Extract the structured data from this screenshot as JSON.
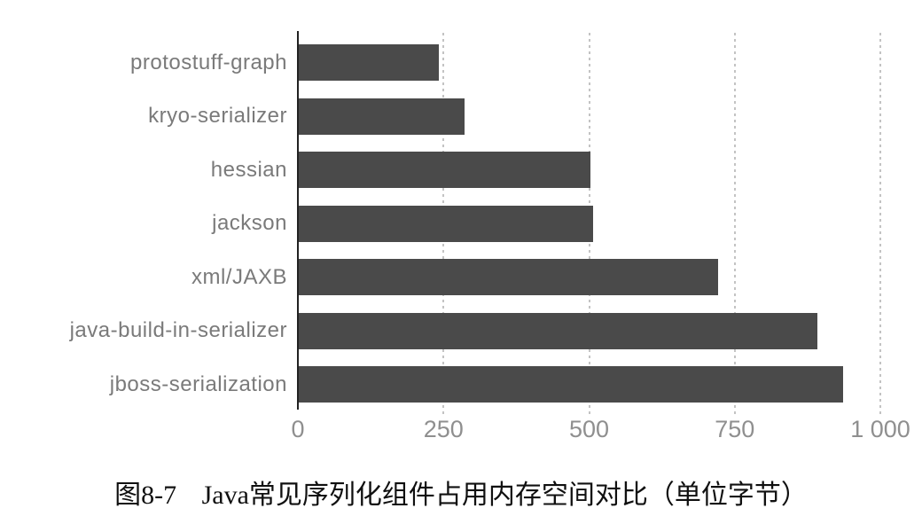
{
  "figure": {
    "caption": {
      "label": "图8-7",
      "text": "Java常见序列化组件占用内存空间对比（单位字节）"
    }
  },
  "chart_data": {
    "type": "bar",
    "orientation": "horizontal",
    "title": "",
    "xlabel": "",
    "ylabel": "",
    "unit": "字节 (bytes)",
    "categories": [
      "protostuff-graph",
      "kryo-serializer",
      "hessian",
      "jackson",
      "xml/JAXB",
      "java-build-in-serializer",
      "jboss-serialization"
    ],
    "values": [
      240,
      285,
      500,
      505,
      720,
      890,
      935
    ],
    "xlim": [
      0,
      1000
    ],
    "x_ticks": [
      {
        "value": 0,
        "label": "0"
      },
      {
        "value": 250,
        "label": "250"
      },
      {
        "value": 500,
        "label": "500"
      },
      {
        "value": 750,
        "label": "750"
      },
      {
        "value": 1000,
        "label": "1 000"
      }
    ],
    "grid": "vertical-dotted-gridlines",
    "legend": "none",
    "colors": {
      "bar": "#4a4a4a",
      "axis_line": "#222222",
      "gridline": "#c3c3c3",
      "tick_label": "#8f8f8f",
      "category_label": "#7a7a7a",
      "caption_text": "#101010",
      "background": "#ffffff"
    }
  }
}
